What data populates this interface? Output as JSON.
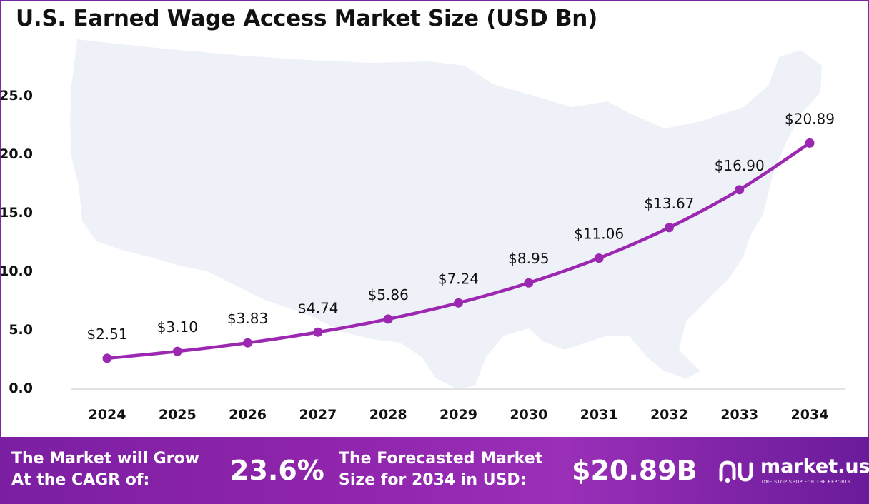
{
  "title": "U.S. Earned Wage Access Market Size (USD Bn)",
  "colors": {
    "line": "#9c27b0",
    "footer_start": "#7b1fa2",
    "footer_end": "#6a1b9a",
    "map": "#eef2f8",
    "text": "#111111"
  },
  "chart_data": {
    "type": "line",
    "title": "U.S. Earned Wage Access Market Size (USD Bn)",
    "categories": [
      "2024",
      "2025",
      "2026",
      "2027",
      "2028",
      "2029",
      "2030",
      "2031",
      "2032",
      "2033",
      "2034"
    ],
    "values": [
      2.51,
      3.1,
      3.83,
      4.74,
      5.86,
      7.24,
      8.95,
      11.06,
      13.67,
      16.9,
      20.89
    ],
    "data_labels": [
      "$2.51",
      "$3.10",
      "$3.83",
      "$4.74",
      "$5.86",
      "$7.24",
      "$8.95",
      "$11.06",
      "$13.67",
      "$16.90",
      "$20.89"
    ],
    "y_ticks": [
      "0.0",
      "5.0",
      "10.0",
      "15.0",
      "20.0",
      "25.0"
    ],
    "ylim": [
      0,
      25
    ],
    "xlabel": "",
    "ylabel": "",
    "grid": false,
    "legend": "none",
    "markers": true
  },
  "footer": {
    "cagr_label_line1": "The Market will Grow",
    "cagr_label_line2": "At the CAGR of:",
    "cagr_value": "23.6%",
    "forecast_label_line1": "The Forecasted Market",
    "forecast_label_line2": "Size for 2034 in USD:",
    "forecast_value": "$20.89B"
  },
  "brand": {
    "name": "market.us",
    "tagline": "ONE STOP SHOP FOR THE REPORTS",
    "logo_icon": "market-us-logo-icon"
  }
}
